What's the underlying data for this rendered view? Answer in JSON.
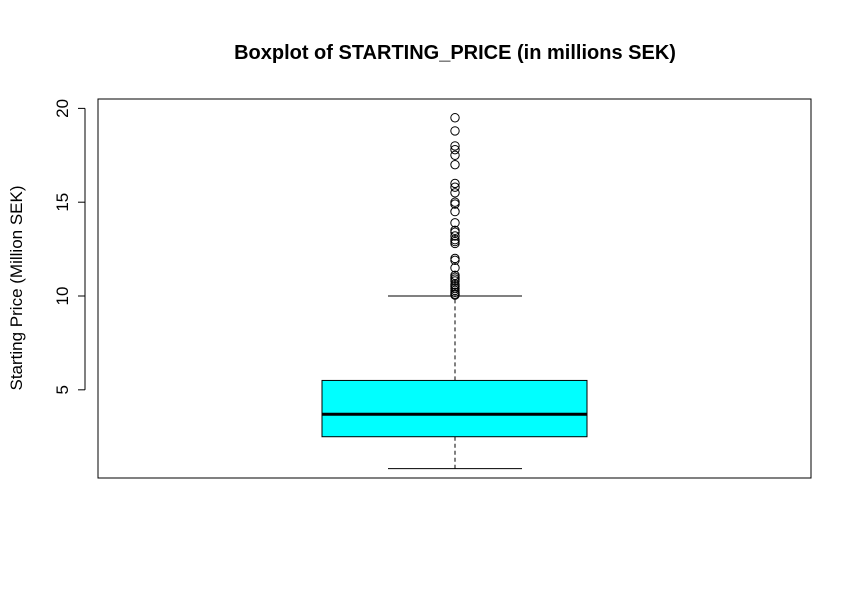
{
  "chart_data": {
    "type": "boxplot",
    "title": "Boxplot of STARTING_PRICE (in millions SEK)",
    "xlabel": "",
    "ylabel": "Starting Price (Million SEK)",
    "ylim": [
      0.3,
      20.5
    ],
    "yticks": [
      5,
      10,
      15,
      20
    ],
    "ytick_labels": [
      "5",
      "10",
      "15",
      "20"
    ],
    "box_color": "#00ffff",
    "stats": {
      "whisker_low": 0.8,
      "q1": 2.5,
      "median": 3.7,
      "q3": 5.5,
      "whisker_high": 10.0
    },
    "outliers": [
      10.05,
      10.1,
      10.2,
      10.3,
      10.4,
      10.5,
      10.6,
      10.8,
      10.9,
      11.0,
      11.1,
      11.5,
      11.9,
      12.0,
      12.8,
      12.9,
      13.0,
      13.2,
      13.4,
      13.5,
      13.9,
      14.5,
      14.9,
      15.0,
      15.5,
      15.8,
      16.0,
      17.0,
      17.5,
      17.8,
      18.0,
      18.8,
      19.5
    ]
  }
}
